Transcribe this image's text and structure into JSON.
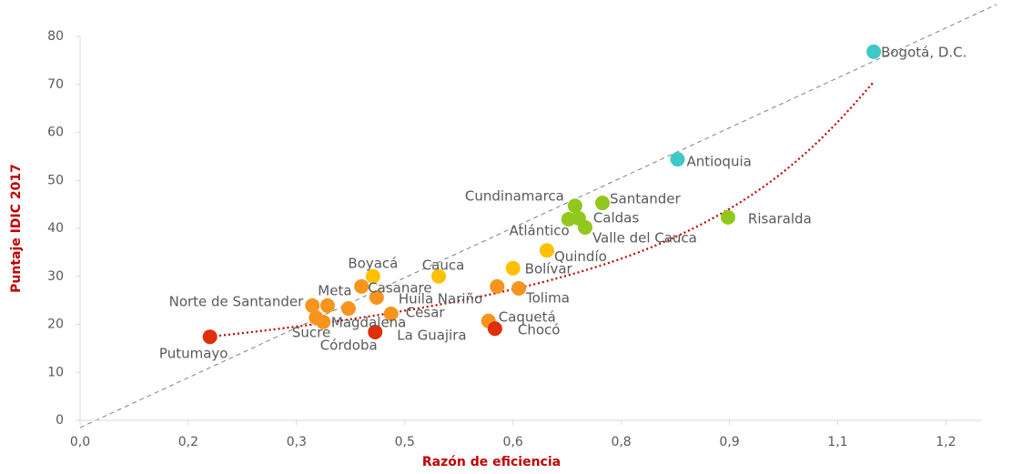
{
  "chart_data": {
    "type": "scatter",
    "xlabel": "Razón de eficiencia",
    "ylabel": "Puntaje IDIC 2017",
    "categories": [
      "Bogotá, D.C.",
      "Antioquia",
      "Cundinamarca",
      "Santander",
      "Caldas",
      "Atlántico",
      "Valle del Cauca",
      "Risaralda",
      "Quindío",
      "Bolívar",
      "Boyacá",
      "Cauca",
      "Casanare",
      "Huila",
      "Meta",
      "Norte de Santander",
      "Nariño",
      "Tolima",
      "Cesar",
      "Caquetá",
      "Magdalena",
      "Sucre",
      "Córdoba",
      "Putumayo",
      "La Guajira",
      "Chocó"
    ],
    "x": [
      1.1,
      0.828,
      0.686,
      0.724,
      0.691,
      0.677,
      0.7,
      0.898,
      0.647,
      0.6,
      0.406,
      0.497,
      0.39,
      0.411,
      0.343,
      0.322,
      0.578,
      0.608,
      0.431,
      0.566,
      0.372,
      0.327,
      0.337,
      0.18,
      0.409,
      0.575
    ],
    "values": [
      76.8,
      54.4,
      44.7,
      45.3,
      42.1,
      41.9,
      40.2,
      42.3,
      35.4,
      31.7,
      30.0,
      30.0,
      27.9,
      25.6,
      23.9,
      23.9,
      27.9,
      27.5,
      22.2,
      20.7,
      23.3,
      21.4,
      20.5,
      17.4,
      18.4,
      19.1
    ],
    "colors": [
      "#3fc8c8",
      "#3fc8c8",
      "#92c81e",
      "#92c81e",
      "#92c81e",
      "#92c81e",
      "#92c81e",
      "#92c81e",
      "#ffc000",
      "#ffc000",
      "#ffc000",
      "#ffc000",
      "#f7941d",
      "#f7941d",
      "#f7941d",
      "#f7941d",
      "#f7941d",
      "#f7941d",
      "#f7941d",
      "#f7941d",
      "#f7941d",
      "#f7941d",
      "#f7941d",
      "#e02d0c",
      "#e02d0c",
      "#e02d0c"
    ],
    "xlim": [
      0,
      1.25
    ],
    "ylim": [
      0,
      80
    ],
    "xticks": [
      {
        "value": 0,
        "label": "0,0"
      },
      {
        "value": 0.15,
        "label": "0,2"
      },
      {
        "value": 0.3,
        "label": "0,3"
      },
      {
        "value": 0.45,
        "label": "0,5"
      },
      {
        "value": 0.6,
        "label": "0,6"
      },
      {
        "value": 0.75,
        "label": "0,8"
      },
      {
        "value": 0.9,
        "label": "0,9"
      },
      {
        "value": 1.05,
        "label": "1,1"
      },
      {
        "value": 1.2,
        "label": "1,2"
      }
    ],
    "yticks": [
      0,
      10,
      20,
      30,
      40,
      50,
      60,
      70,
      80
    ],
    "grid": false
  }
}
